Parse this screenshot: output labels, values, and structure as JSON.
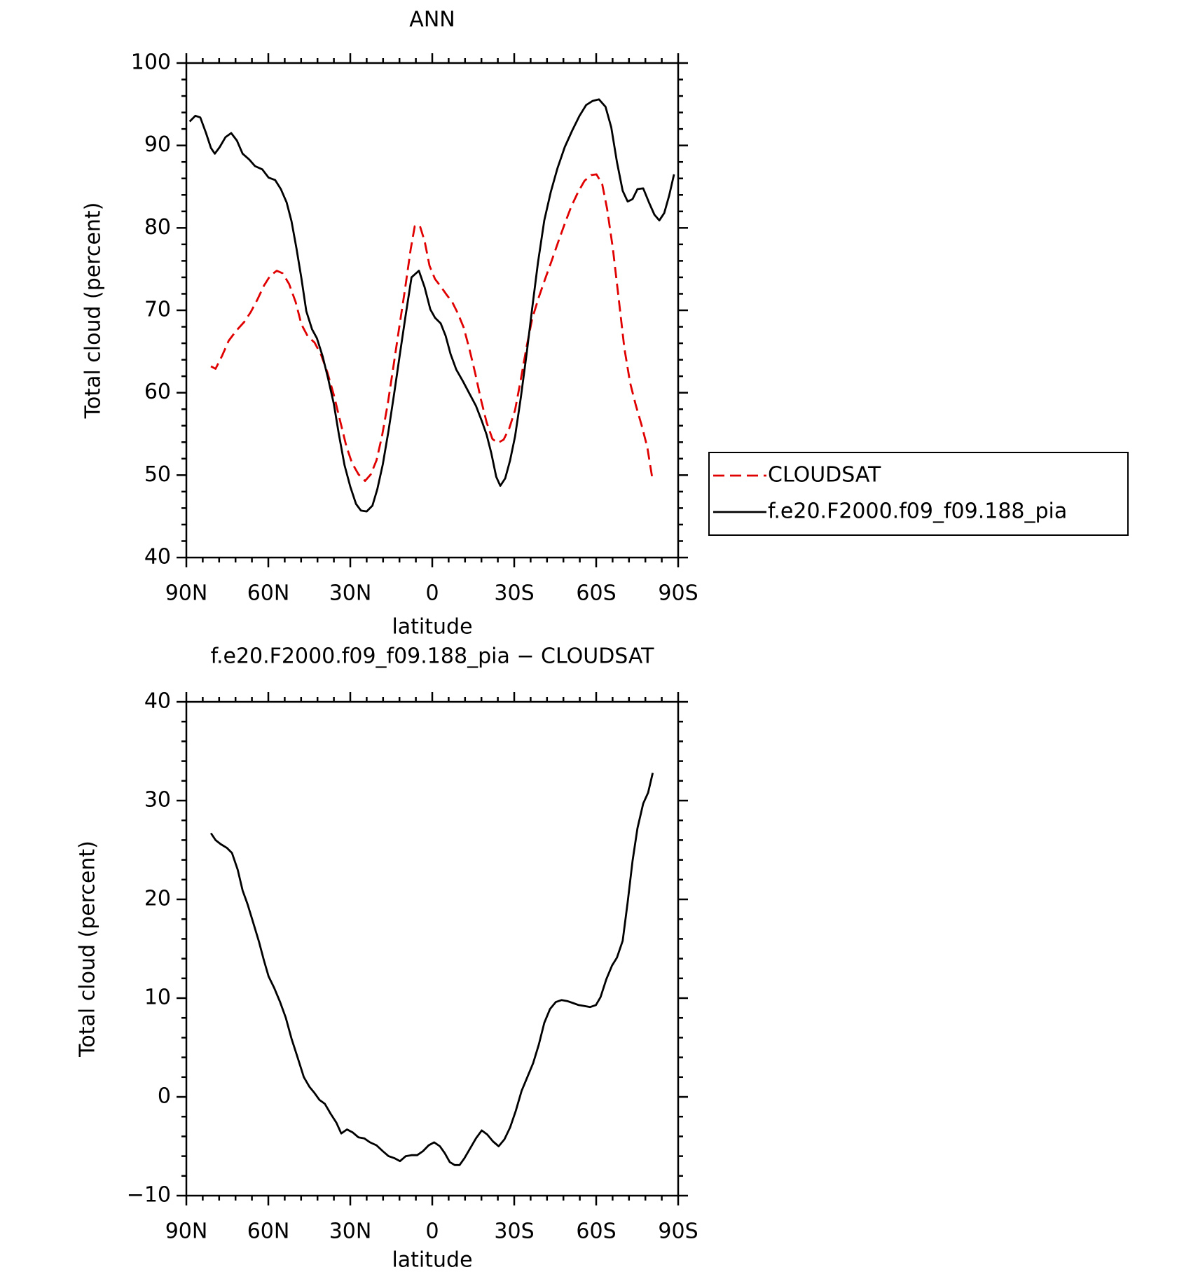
{
  "chart_data": [
    {
      "type": "line",
      "title": "ANN",
      "xlabel": "latitude",
      "ylabel": "Total cloud (percent)",
      "xlim": [
        90,
        -90
      ],
      "xticks": [
        {
          "value": 90,
          "label": "90N"
        },
        {
          "value": 60,
          "label": "60N"
        },
        {
          "value": 30,
          "label": "30N"
        },
        0,
        {
          "value": -30,
          "label": "30S"
        },
        {
          "value": -60,
          "label": "60S"
        },
        {
          "value": -90,
          "label": "90S"
        }
      ],
      "ylim": [
        40,
        100
      ],
      "yticks": [
        40,
        50,
        60,
        70,
        80,
        90,
        100
      ],
      "legend": "right",
      "series": [
        {
          "name": "CLOUDSAT",
          "color": "#e00000",
          "line_style": "dashed",
          "x": [
            81,
            79.3,
            76.9,
            74.5,
            71.8,
            68.8,
            66.4,
            64,
            61.6,
            59.3,
            56.9,
            54.8,
            52.4,
            50,
            47.9,
            45.5,
            43.1,
            40.7,
            38.4,
            36,
            33.6,
            31.5,
            29.4,
            27,
            24.6,
            22.5,
            20.4,
            18.4,
            16.3,
            14.2,
            12.1,
            10,
            7.9,
            6.4,
            4.6,
            2.8,
            1,
            -1,
            -3.1,
            -5.2,
            -7.3,
            -9.4,
            -11.5,
            -13.6,
            -15.7,
            -17.8,
            -19.9,
            -22,
            -24,
            -26.1,
            -28.2,
            -30.3,
            -32.4,
            -34.5,
            -36.6,
            -39,
            -41.3,
            -43.7,
            -46.1,
            -48.5,
            -50.9,
            -53.3,
            -55.7,
            -58.1,
            -60.1,
            -62.2,
            -64,
            -66.1,
            -68.2,
            -70.3,
            -72.4,
            -74.5,
            -76.6,
            -78.7,
            -80.7
          ],
          "values": [
            63.2,
            62.9,
            64.5,
            66.3,
            67.5,
            68.6,
            69.8,
            71.3,
            73,
            74.2,
            74.8,
            74.5,
            73.2,
            71,
            68.3,
            66.8,
            66.1,
            64.6,
            62.5,
            59.7,
            56.4,
            53.6,
            51.5,
            50.1,
            49.3,
            50.1,
            51.8,
            54.7,
            58.6,
            63.2,
            67.9,
            72.5,
            77.4,
            80.2,
            80.3,
            78.4,
            75.4,
            73.8,
            72.9,
            71.9,
            71,
            69.6,
            67.9,
            65.3,
            62.4,
            59.2,
            56.4,
            54.4,
            53.9,
            54.3,
            55.7,
            57.9,
            61.6,
            65.5,
            69,
            71.6,
            73.8,
            76,
            78.3,
            80.5,
            82.6,
            84.3,
            85.7,
            86.4,
            86.5,
            85.3,
            82.3,
            77.5,
            71.5,
            65.4,
            61.2,
            58.5,
            56.1,
            53.4,
            49.3
          ]
        },
        {
          "name": "f.e20.F2000.f09_f09.188_pia",
          "color": "#000000",
          "line_style": "solid",
          "x": [
            88.8,
            86.7,
            84.9,
            82.8,
            81,
            79.6,
            77.8,
            75.7,
            73.6,
            71.5,
            69.4,
            67,
            64.9,
            62.2,
            59.9,
            57.5,
            55.4,
            53.3,
            51.5,
            49.7,
            47.9,
            46.1,
            44,
            42.2,
            40.1,
            38.1,
            36,
            34.2,
            32.1,
            30,
            27.9,
            26.1,
            24,
            21.9,
            20.1,
            18.1,
            16,
            13.9,
            11.8,
            9.7,
            7.6,
            4.9,
            2.8,
            0.7,
            -1,
            -3.1,
            -4.9,
            -6.7,
            -8.8,
            -11.2,
            -13.6,
            -16,
            -18.1,
            -19.9,
            -21.6,
            -23.4,
            -24.9,
            -26.7,
            -28.5,
            -30.3,
            -32.4,
            -34.5,
            -36.6,
            -38.7,
            -41,
            -43.4,
            -45.8,
            -48.5,
            -51.2,
            -53.9,
            -56.3,
            -58.7,
            -61,
            -63.4,
            -65.5,
            -67.6,
            -69.7,
            -71.5,
            -73.3,
            -75.1,
            -77.2,
            -79.3,
            -81.3,
            -83.1,
            -84.9,
            -86.7,
            -88.5
          ],
          "values": [
            92.9,
            93.6,
            93.4,
            91.5,
            89.7,
            89,
            89.8,
            91,
            91.5,
            90.6,
            89,
            88.3,
            87.5,
            87.1,
            86.1,
            85.8,
            84.7,
            83.1,
            80.8,
            77.5,
            73.9,
            69.9,
            67.7,
            66.6,
            64.4,
            61.7,
            58.6,
            55,
            51.2,
            48.6,
            46.5,
            45.7,
            45.6,
            46.3,
            48.3,
            51.3,
            55.4,
            60,
            64.8,
            69.5,
            74,
            74.8,
            72.8,
            70.1,
            69.1,
            68.4,
            66.9,
            64.7,
            62.8,
            61.4,
            59.9,
            58.4,
            56.6,
            54.9,
            52.7,
            49.8,
            48.7,
            49.6,
            51.8,
            54.7,
            59.4,
            64.6,
            70.3,
            75.8,
            80.9,
            84.4,
            87.2,
            89.8,
            91.8,
            93.6,
            94.9,
            95.4,
            95.6,
            94.7,
            92.2,
            88,
            84.5,
            83.2,
            83.5,
            84.7,
            84.8,
            83.1,
            81.6,
            80.9,
            81.8,
            83.9,
            86.5
          ]
        }
      ]
    },
    {
      "type": "line",
      "title": "f.e20.F2000.f09_f09.188_pia − CLOUDSAT",
      "xlabel": "latitude",
      "ylabel": "Total cloud (percent)",
      "xlim": [
        90,
        -90
      ],
      "xticks": [
        {
          "value": 90,
          "label": "90N"
        },
        {
          "value": 60,
          "label": "60N"
        },
        {
          "value": 30,
          "label": "30N"
        },
        0,
        {
          "value": -30,
          "label": "30S"
        },
        {
          "value": -60,
          "label": "60S"
        },
        {
          "value": -90,
          "label": "90S"
        }
      ],
      "ylim": [
        -10,
        40
      ],
      "yticks": [
        {
          "value": -10,
          "label": "−10"
        },
        0,
        10,
        20,
        30,
        40
      ],
      "series": [
        {
          "color": "#000000",
          "line_style": "solid",
          "x": [
            81,
            79.3,
            77.5,
            75.1,
            73.3,
            71.2,
            69.4,
            67.6,
            65.5,
            63.4,
            61.6,
            59.9,
            57.8,
            55.7,
            53.6,
            51.5,
            49.4,
            47,
            44.9,
            43.1,
            41.3,
            39.3,
            37.2,
            35.1,
            33.3,
            31.2,
            29.1,
            27,
            24.9,
            22.8,
            20.4,
            18.1,
            16,
            13.9,
            11.8,
            9.7,
            7.6,
            5.5,
            3.4,
            1.3,
            -0.7,
            -2.8,
            -4.6,
            -6.4,
            -8.2,
            -10,
            -11.8,
            -13.9,
            -16,
            -18.1,
            -20.1,
            -22.2,
            -24.3,
            -26.4,
            -28.5,
            -30.6,
            -32.7,
            -34.8,
            -36.9,
            -39,
            -41,
            -43.1,
            -45.2,
            -47.3,
            -49.4,
            -51.5,
            -53.6,
            -55.7,
            -57.8,
            -59.9,
            -61.6,
            -63.7,
            -65.8,
            -67.6,
            -69.7,
            -71.5,
            -73.3,
            -75.1,
            -77.2,
            -79,
            -80.7
          ],
          "values": [
            26.7,
            26,
            25.6,
            25.2,
            24.7,
            23,
            20.9,
            19.5,
            17.6,
            15.7,
            13.8,
            12.2,
            11,
            9.6,
            8,
            5.9,
            4.1,
            2,
            1,
            0.4,
            -0.3,
            -0.7,
            -1.7,
            -2.6,
            -3.7,
            -3.3,
            -3.6,
            -4.1,
            -4.2,
            -4.6,
            -4.9,
            -5.5,
            -6,
            -6.2,
            -6.5,
            -6,
            -5.9,
            -5.9,
            -5.5,
            -4.9,
            -4.6,
            -5,
            -5.7,
            -6.6,
            -6.9,
            -6.9,
            -6.2,
            -5.2,
            -4.2,
            -3.4,
            -3.8,
            -4.5,
            -5,
            -4.3,
            -3.1,
            -1.4,
            0.6,
            2,
            3.4,
            5.3,
            7.5,
            8.9,
            9.6,
            9.8,
            9.7,
            9.5,
            9.3,
            9.2,
            9.1,
            9.3,
            10.1,
            11.9,
            13.3,
            14.1,
            15.8,
            19.7,
            23.9,
            27.2,
            29.7,
            30.8,
            32.8
          ]
        }
      ]
    }
  ]
}
